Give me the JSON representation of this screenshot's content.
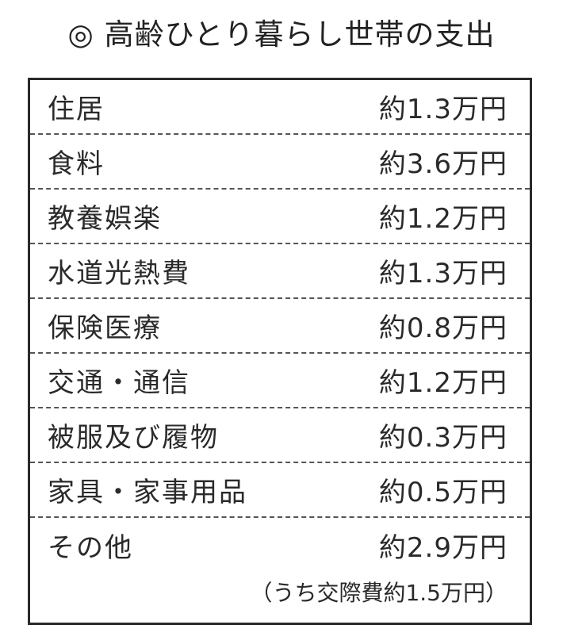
{
  "title": "◎ 高齢ひとり暮らし世帯の支出",
  "rows": [
    {
      "label": "住居",
      "value": "約1.3万円"
    },
    {
      "label": "食料",
      "value": "約3.6万円"
    },
    {
      "label": "教養娯楽",
      "value": "約1.2万円"
    },
    {
      "label": "水道光熱費",
      "value": "約1.3万円"
    },
    {
      "label": "保険医療",
      "value": "約0.8万円"
    },
    {
      "label": "交通・通信",
      "value": "約1.2万円"
    },
    {
      "label": "被服及び履物",
      "value": "約0.3万円"
    },
    {
      "label": "家具・家事用品",
      "value": "約0.5万円"
    },
    {
      "label": "その他",
      "value": "約2.9万円"
    }
  ],
  "note": "（うち交際費約1.5万円）"
}
